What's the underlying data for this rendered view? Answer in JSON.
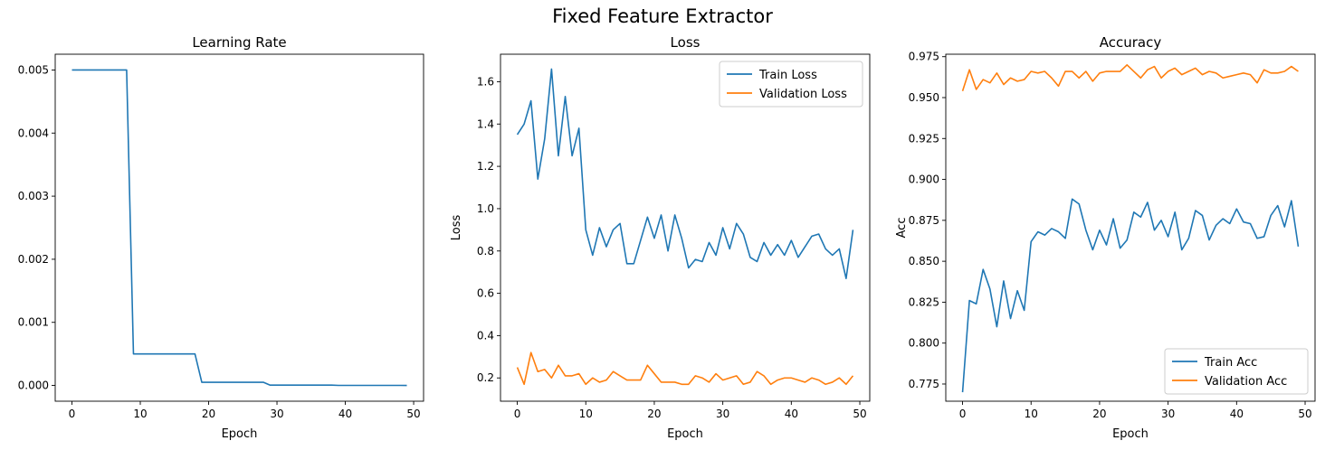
{
  "figure": {
    "title": "Fixed Feature Extractor"
  },
  "colors": {
    "train": "#1f77b4",
    "validation": "#ff7f0e",
    "axis": "#000000"
  },
  "chart_data": [
    {
      "type": "line",
      "title": "Learning Rate",
      "xlabel": "Epoch",
      "ylabel": "",
      "xlim": [
        -2.45,
        51.45
      ],
      "ylim": [
        -0.00025,
        0.00525
      ],
      "xticks": [
        0,
        10,
        20,
        30,
        40,
        50
      ],
      "yticks": [
        0.0,
        0.001,
        0.002,
        0.003,
        0.004,
        0.005
      ],
      "ytick_labels": [
        "0.000",
        "0.001",
        "0.002",
        "0.003",
        "0.004",
        "0.005"
      ],
      "legend": null,
      "grid": false,
      "x": [
        0,
        1,
        2,
        3,
        4,
        5,
        6,
        7,
        8,
        9,
        10,
        11,
        12,
        13,
        14,
        15,
        16,
        17,
        18,
        19,
        20,
        21,
        22,
        23,
        24,
        25,
        26,
        27,
        28,
        29,
        30,
        31,
        32,
        33,
        34,
        35,
        36,
        37,
        38,
        39,
        40,
        41,
        42,
        43,
        44,
        45,
        46,
        47,
        48,
        49
      ],
      "series": [
        {
          "values": [
            0.005,
            0.005,
            0.005,
            0.005,
            0.005,
            0.005,
            0.005,
            0.005,
            0.005,
            0.0005,
            0.0005,
            0.0005,
            0.0005,
            0.0005,
            0.0005,
            0.0005,
            0.0005,
            0.0005,
            0.0005,
            5e-05,
            5e-05,
            5e-05,
            5e-05,
            5e-05,
            5e-05,
            5e-05,
            5e-05,
            5e-05,
            5e-05,
            5e-06,
            5e-06,
            5e-06,
            5e-06,
            5e-06,
            5e-06,
            5e-06,
            5e-06,
            5e-06,
            5e-06,
            5e-07,
            5e-07,
            5e-07,
            5e-07,
            5e-07,
            5e-07,
            5e-07,
            5e-07,
            5e-07,
            5e-07,
            5e-08
          ],
          "color": "#1f77b4"
        }
      ]
    },
    {
      "type": "line",
      "title": "Loss",
      "xlabel": "Epoch",
      "ylabel": "Loss",
      "xlim": [
        -2.45,
        51.45
      ],
      "ylim": [
        0.09,
        1.73
      ],
      "xticks": [
        0,
        10,
        20,
        30,
        40,
        50
      ],
      "yticks": [
        0.2,
        0.4,
        0.6,
        0.8,
        1.0,
        1.2,
        1.4,
        1.6
      ],
      "ytick_labels": [
        "0.2",
        "0.4",
        "0.6",
        "0.8",
        "1.0",
        "1.2",
        "1.4",
        "1.6"
      ],
      "legend": "upper right",
      "grid": false,
      "x": [
        0,
        1,
        2,
        3,
        4,
        5,
        6,
        7,
        8,
        9,
        10,
        11,
        12,
        13,
        14,
        15,
        16,
        17,
        18,
        19,
        20,
        21,
        22,
        23,
        24,
        25,
        26,
        27,
        28,
        29,
        30,
        31,
        32,
        33,
        34,
        35,
        36,
        37,
        38,
        39,
        40,
        41,
        42,
        43,
        44,
        45,
        46,
        47,
        48,
        49
      ],
      "series": [
        {
          "name": "Train Loss",
          "color": "#1f77b4",
          "values": [
            1.35,
            1.4,
            1.51,
            1.14,
            1.33,
            1.66,
            1.25,
            1.53,
            1.25,
            1.38,
            0.9,
            0.78,
            0.91,
            0.82,
            0.9,
            0.93,
            0.74,
            0.74,
            0.85,
            0.96,
            0.86,
            0.97,
            0.8,
            0.97,
            0.86,
            0.72,
            0.76,
            0.75,
            0.84,
            0.78,
            0.91,
            0.81,
            0.93,
            0.88,
            0.77,
            0.75,
            0.84,
            0.78,
            0.83,
            0.78,
            0.85,
            0.77,
            0.82,
            0.87,
            0.88,
            0.81,
            0.78,
            0.81,
            0.67,
            0.9
          ]
        },
        {
          "name": "Validation Loss",
          "color": "#ff7f0e",
          "values": [
            0.25,
            0.17,
            0.32,
            0.23,
            0.24,
            0.2,
            0.26,
            0.21,
            0.21,
            0.22,
            0.17,
            0.2,
            0.18,
            0.19,
            0.23,
            0.21,
            0.19,
            0.19,
            0.19,
            0.26,
            0.22,
            0.18,
            0.18,
            0.18,
            0.17,
            0.17,
            0.21,
            0.2,
            0.18,
            0.22,
            0.19,
            0.2,
            0.21,
            0.17,
            0.18,
            0.23,
            0.21,
            0.17,
            0.19,
            0.2,
            0.2,
            0.19,
            0.18,
            0.2,
            0.19,
            0.17,
            0.18,
            0.2,
            0.17,
            0.21
          ]
        }
      ]
    },
    {
      "type": "line",
      "title": "Accuracy",
      "xlabel": "Epoch",
      "ylabel": "Acc",
      "xlim": [
        -2.45,
        51.45
      ],
      "ylim": [
        0.7645,
        0.9765
      ],
      "xticks": [
        0,
        10,
        20,
        30,
        40,
        50
      ],
      "yticks": [
        0.775,
        0.8,
        0.825,
        0.85,
        0.875,
        0.9,
        0.925,
        0.95,
        0.975
      ],
      "ytick_labels": [
        "0.775",
        "0.800",
        "0.825",
        "0.850",
        "0.875",
        "0.900",
        "0.925",
        "0.950",
        "0.975"
      ],
      "legend": "lower right",
      "grid": false,
      "x": [
        0,
        1,
        2,
        3,
        4,
        5,
        6,
        7,
        8,
        9,
        10,
        11,
        12,
        13,
        14,
        15,
        16,
        17,
        18,
        19,
        20,
        21,
        22,
        23,
        24,
        25,
        26,
        27,
        28,
        29,
        30,
        31,
        32,
        33,
        34,
        35,
        36,
        37,
        38,
        39,
        40,
        41,
        42,
        43,
        44,
        45,
        46,
        47,
        48,
        49
      ],
      "series": [
        {
          "name": "Train Acc",
          "color": "#1f77b4",
          "values": [
            0.77,
            0.826,
            0.824,
            0.845,
            0.833,
            0.81,
            0.838,
            0.815,
            0.832,
            0.82,
            0.862,
            0.868,
            0.866,
            0.87,
            0.868,
            0.864,
            0.888,
            0.885,
            0.869,
            0.857,
            0.869,
            0.86,
            0.876,
            0.858,
            0.863,
            0.88,
            0.877,
            0.886,
            0.869,
            0.875,
            0.865,
            0.88,
            0.857,
            0.864,
            0.881,
            0.878,
            0.863,
            0.872,
            0.876,
            0.873,
            0.882,
            0.874,
            0.873,
            0.864,
            0.865,
            0.878,
            0.884,
            0.871,
            0.887,
            0.859
          ]
        },
        {
          "name": "Validation Acc",
          "color": "#ff7f0e",
          "values": [
            0.954,
            0.967,
            0.955,
            0.961,
            0.959,
            0.965,
            0.958,
            0.962,
            0.96,
            0.961,
            0.966,
            0.965,
            0.966,
            0.962,
            0.957,
            0.966,
            0.966,
            0.962,
            0.966,
            0.96,
            0.965,
            0.966,
            0.966,
            0.966,
            0.97,
            0.966,
            0.962,
            0.967,
            0.969,
            0.962,
            0.966,
            0.968,
            0.964,
            0.966,
            0.968,
            0.964,
            0.966,
            0.965,
            0.962,
            0.963,
            0.964,
            0.965,
            0.964,
            0.959,
            0.967,
            0.965,
            0.965,
            0.966,
            0.969,
            0.966
          ]
        }
      ]
    }
  ]
}
